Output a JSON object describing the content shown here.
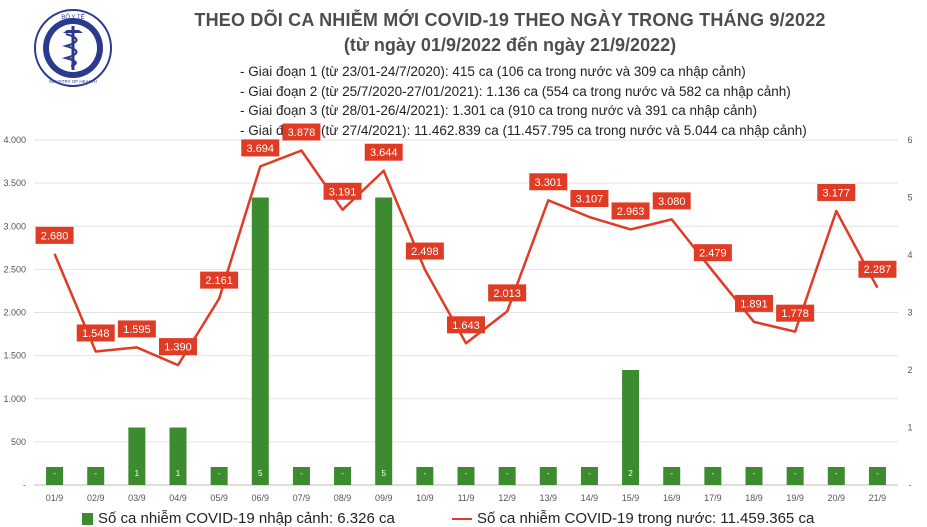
{
  "header": {
    "title": "THEO DÕI CA NHIỄM MỚI COVID-19 THEO NGÀY TRONG THÁNG 9/2022",
    "subtitle": "(từ ngày 01/9/2022 đến ngày 21/9/2022)",
    "logo_top_text": "BỘ Y TẾ",
    "logo_bottom_text": "MINISTRY OF HEALTH"
  },
  "notes": [
    "- Giai đoạn 1 (từ 23/01-24/7/2020): 415 ca (106 ca trong nước và 309 ca nhập cảnh)",
    "- Giai đoạn 2 (từ 25/7/2020-27/01/2021): 1.136 ca (554 ca trong nước và 582 ca nhập cảnh)",
    "- Giai đoạn 3 (từ 28/01-26/4/2021): 1.301 ca (910 ca trong nước và 391 ca nhập cảnh)",
    "- Giai đoạn 4 (từ 27/4/2021): 11.462.839 ca (11.457.795 ca trong nước và 5.044 ca nhập cảnh)"
  ],
  "colors": {
    "bar": "#3d8b2f",
    "line": "#e03b24",
    "label_bg": "#e03b24"
  },
  "legend": {
    "bar_label": "Số ca nhiễm COVID-19 nhập cảnh: 6.326 ca",
    "line_label": "Số ca nhiễm COVID-19 trong nước: 11.459.365 ca"
  },
  "chart_data": {
    "type": "bar+line",
    "categories": [
      "01/9",
      "02/9",
      "03/9",
      "04/9",
      "05/9",
      "06/9",
      "07/9",
      "08/9",
      "09/9",
      "10/9",
      "11/9",
      "12/9",
      "13/9",
      "14/9",
      "15/9",
      "16/9",
      "17/9",
      "18/9",
      "19/9",
      "20/9",
      "21/9"
    ],
    "series": [
      {
        "name": "Số ca nhiễm COVID-19 nhập cảnh: 6.326 ca",
        "type": "bar",
        "axis": "right",
        "values": [
          0,
          0,
          1,
          1,
          0,
          5,
          0,
          0,
          5,
          0,
          0,
          0,
          0,
          0,
          2,
          0,
          0,
          0,
          0,
          0,
          0
        ],
        "labels": [
          "-",
          "-",
          "1",
          "1",
          "-",
          "5",
          "-",
          "-",
          "5",
          "-",
          "-",
          "-",
          "-",
          "-",
          "2",
          "-",
          "-",
          "-",
          "-",
          "-",
          "-"
        ]
      },
      {
        "name": "Số ca nhiễm COVID-19 trong nước: 11.459.365 ca",
        "type": "line",
        "axis": "left",
        "values": [
          2680,
          1548,
          1595,
          1390,
          2161,
          3694,
          3878,
          3191,
          3644,
          2498,
          1643,
          2013,
          3301,
          3107,
          2963,
          3080,
          2479,
          1891,
          1778,
          3177,
          2287
        ],
        "labels": [
          "2.680",
          "1.548",
          "1.595",
          "1.390",
          "2.161",
          "3.694",
          "3.878",
          "3.191",
          "3.644",
          "2.498",
          "1.643",
          "2.013",
          "3.301",
          "3.107",
          "2.963",
          "3.080",
          "2.479",
          "1.891",
          "1.778",
          "3.177",
          "2.287"
        ]
      }
    ],
    "y_left": {
      "range": [
        0,
        4000
      ],
      "ticks": [
        0,
        500,
        1000,
        1500,
        2000,
        2500,
        3000,
        3500,
        4000
      ],
      "tick_labels": [
        "-",
        "500",
        "1.000",
        "1.500",
        "2.000",
        "2.500",
        "3.000",
        "3.500",
        "4.000"
      ]
    },
    "y_right": {
      "range": [
        0,
        6
      ],
      "ticks": [
        0,
        1,
        2,
        3,
        4,
        5,
        6
      ],
      "tick_labels": [
        "-",
        "1",
        "2",
        "3",
        "4",
        "5",
        "6"
      ]
    },
    "grid": true
  }
}
